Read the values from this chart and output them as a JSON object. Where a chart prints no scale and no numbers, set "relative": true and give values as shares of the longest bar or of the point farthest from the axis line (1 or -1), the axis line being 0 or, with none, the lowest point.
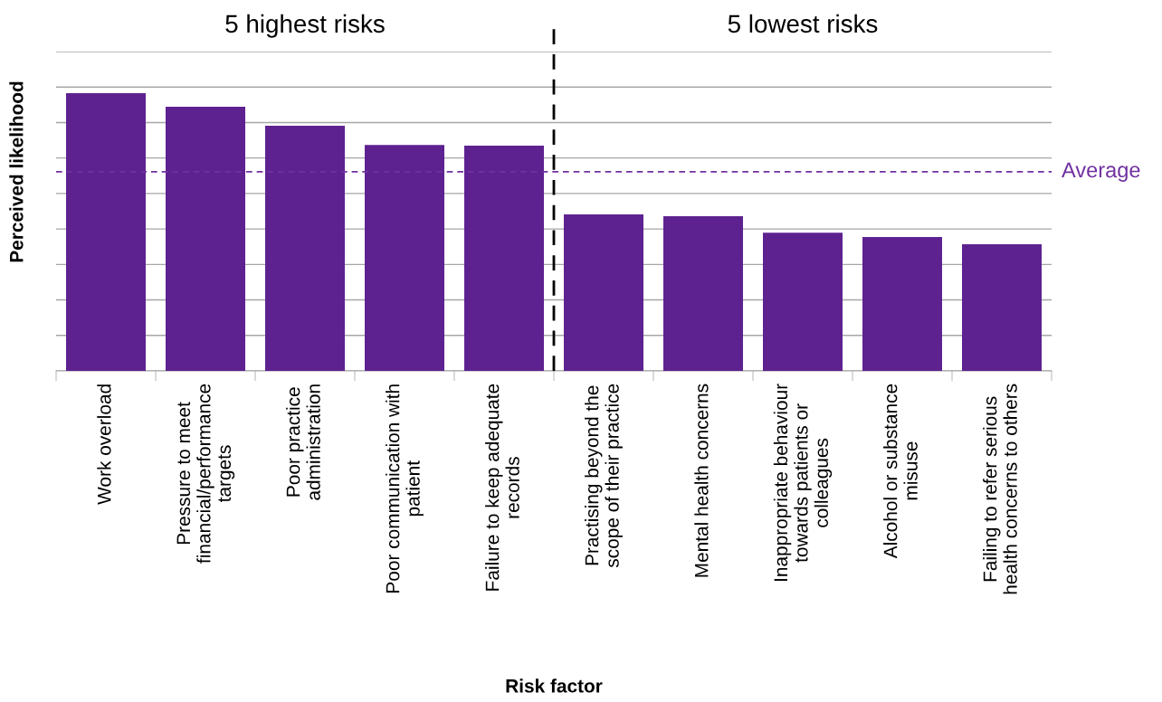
{
  "chart_data": {
    "type": "bar",
    "relative": true,
    "xlabel": "Risk factor",
    "ylabel": "Perceived likelihood",
    "categories": [
      "Work overload",
      "Pressure to meet\nfinancial/performance\ntargets",
      "Poor practice\nadministration",
      "Poor communication with\npatient",
      "Failure to keep adequate\nrecords",
      "Practising beyond the\nscope of their practice",
      "Mental health concerns",
      "Inappropriate behaviour\ntowards patients or\ncolleagues",
      "Alcohol or substance\nmisuse",
      "Failing to refer serious\nhealth concerns to others"
    ],
    "values": [
      1,
      0.951,
      0.883,
      0.814,
      0.811,
      0.564,
      0.557,
      0.498,
      0.482,
      0.456
    ],
    "color": "#5e2290",
    "grid": "y",
    "ref_lines": [
      {
        "axis": "y",
        "value": 0.717,
        "label": "Average",
        "color": "#7030a0",
        "line_style": "dashed"
      }
    ],
    "annotations": [
      "5 highest risks",
      "5 lowest risks"
    ]
  }
}
